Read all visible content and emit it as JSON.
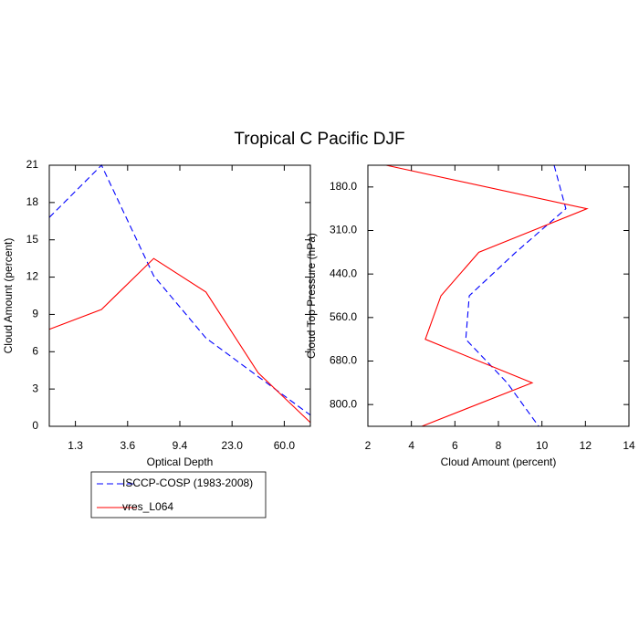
{
  "chart_data": [
    {
      "type": "line",
      "orientation": "vertical",
      "title": "Tropical C Pacific DJF",
      "xlabel": "Optical Depth",
      "ylabel": "Cloud Amount (percent)",
      "x": [
        0,
        1,
        2,
        3,
        4,
        5
      ],
      "xlim": [
        0,
        5
      ],
      "xticks": [
        {
          "value": 0.5,
          "label": "1.3"
        },
        {
          "value": 1.5,
          "label": "3.6"
        },
        {
          "value": 2.5,
          "label": "9.4"
        },
        {
          "value": 3.5,
          "label": "23.0"
        },
        {
          "value": 4.5,
          "label": "60.0"
        }
      ],
      "ylim": [
        0,
        21
      ],
      "yticks": [
        0,
        3,
        6,
        9,
        12,
        15,
        18,
        21
      ],
      "legend": true,
      "series": [
        {
          "name": "ISCCP-COSP (1983-2008)",
          "color": "#0000ff",
          "dashed": true,
          "values": [
            16.8,
            21,
            12.1,
            7.1,
            4.0,
            0.9
          ]
        },
        {
          "name": "vres_L064",
          "color": "#ff0000",
          "dashed": false,
          "values": [
            7.8,
            9.4,
            13.5,
            10.8,
            4.3,
            0.3
          ]
        }
      ]
    },
    {
      "type": "line",
      "orientation": "horizontal",
      "xlabel": "Cloud Amount (percent)",
      "ylabel": "Cloud Top Pressure (hPa)",
      "y": [
        0,
        1,
        2,
        3,
        4,
        5,
        6
      ],
      "ylim": [
        0,
        6
      ],
      "yreverse": true,
      "yticks": [
        {
          "value": 0.5,
          "label": "180.0"
        },
        {
          "value": 1.5,
          "label": "310.0"
        },
        {
          "value": 2.5,
          "label": "440.0"
        },
        {
          "value": 3.5,
          "label": "560.0"
        },
        {
          "value": 4.5,
          "label": "680.0"
        },
        {
          "value": 5.5,
          "label": "800.0"
        }
      ],
      "xlim": [
        2,
        14
      ],
      "xticks": [
        2,
        4,
        6,
        8,
        10,
        12,
        14
      ],
      "series": [
        {
          "color": "#0000ff",
          "dashed": true,
          "values": [
            10.56,
            11.1,
            8.8,
            6.66,
            6.5,
            8.4,
            9.85
          ]
        },
        {
          "color": "#ff0000",
          "dashed": false,
          "values": [
            2.84,
            12.07,
            7.1,
            5.36,
            4.64,
            9.55,
            4.48
          ]
        }
      ]
    }
  ]
}
